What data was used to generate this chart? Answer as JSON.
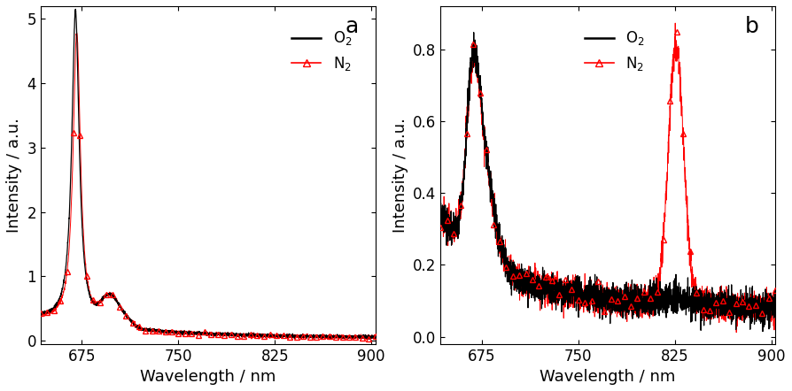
{
  "panel_a": {
    "label": "a",
    "xlabel": "Wavelength / nm",
    "ylabel": "Intensity / a.u.",
    "xlim": [
      643,
      903
    ],
    "ylim": [
      -0.05,
      5.2
    ],
    "yticks": [
      0,
      1,
      2,
      3,
      4,
      5
    ],
    "xticks": [
      675,
      750,
      825,
      900
    ],
    "legend_o2": "O$_2$",
    "legend_n2": "N$_2$"
  },
  "panel_b": {
    "label": "b",
    "xlabel": "Wavelength / nm",
    "ylabel": "Intensity / a.u.",
    "xlim": [
      643,
      903
    ],
    "ylim": [
      -0.02,
      0.92
    ],
    "yticks": [
      0.0,
      0.2,
      0.4,
      0.6,
      0.8
    ],
    "xticks": [
      675,
      750,
      825,
      900
    ],
    "legend_o2": "O$_2$",
    "legend_n2": "N$_2$"
  },
  "black_color": "#000000",
  "red_color": "#ff0000",
  "figsize": [
    8.94,
    4.42
  ],
  "dpi": 100,
  "fontsize_label": 13,
  "fontsize_tick": 12,
  "fontsize_legend": 12,
  "fontsize_panel_label": 18
}
